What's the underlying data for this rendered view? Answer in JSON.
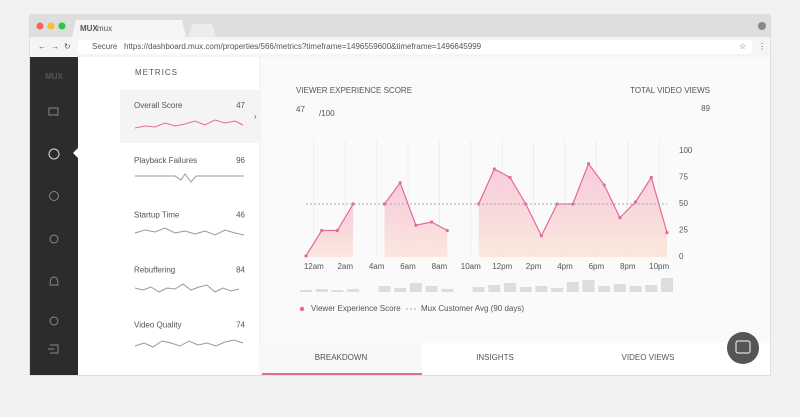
{
  "browser": {
    "tab": "mux",
    "secure": "Secure",
    "url": "https://dashboard.mux.com/properties/566/metrics?timeframe=1496559600&timeframe=1496645999"
  },
  "sidebar": {
    "logo": "MUX"
  },
  "metrics": {
    "title": "METRICS",
    "items": [
      {
        "name": "Overall Score",
        "value": 47
      },
      {
        "name": "Playback Failures",
        "value": 96
      },
      {
        "name": "Startup Time",
        "value": 46
      },
      {
        "name": "Rebuffering",
        "value": 84
      },
      {
        "name": "Video Quality",
        "value": 74
      }
    ]
  },
  "score": {
    "label": "VIEWER EXPERIENCE SCORE",
    "value": 47,
    "suffix": "/100"
  },
  "views": {
    "label": "TOTAL VIDEO VIEWS",
    "value": 89
  },
  "chart_data": {
    "type": "line",
    "x": [
      -0.5,
      0.5,
      1.5,
      2.5,
      3.5,
      4.5,
      5.5,
      6.5,
      7.5,
      8.5,
      9.5,
      10.5,
      11.5,
      12.5,
      13.5,
      14.5,
      15.5,
      16.5,
      17.5,
      18.5,
      19.5,
      20.5,
      21.5,
      22.5
    ],
    "series": [
      {
        "name": "Viewer Experience Score",
        "color": "#e46a9b",
        "values": [
          1,
          25,
          25,
          50,
          null,
          50,
          70,
          30,
          33,
          25,
          null,
          50,
          83,
          75,
          50,
          20,
          50,
          50,
          88,
          68,
          37,
          52,
          75,
          23
        ]
      },
      {
        "name": "Mux Customer Avg (90 days)",
        "color": "#aaaaaa",
        "values": [
          50,
          50,
          50,
          50,
          50,
          50,
          50,
          50,
          50,
          50,
          50,
          50,
          50,
          50,
          50,
          50,
          50,
          50,
          50,
          50,
          50,
          50,
          50,
          50
        ]
      }
    ],
    "xlim": [
      -0.5,
      22.5
    ],
    "xticks": [
      {
        "value": 0,
        "label": "12am"
      },
      {
        "value": 2,
        "label": "2am"
      },
      {
        "value": 4,
        "label": "4am"
      },
      {
        "value": 6,
        "label": "6am"
      },
      {
        "value": 8,
        "label": "8am"
      },
      {
        "value": 10,
        "label": "10am"
      },
      {
        "value": 12,
        "label": "12pm"
      },
      {
        "value": 14,
        "label": "2pm"
      },
      {
        "value": 16,
        "label": "4pm"
      },
      {
        "value": 18,
        "label": "6pm"
      },
      {
        "value": 20,
        "label": "8pm"
      },
      {
        "value": 22,
        "label": "10pm"
      }
    ],
    "ylim": [
      0,
      100
    ],
    "yticks": [
      0,
      25,
      50,
      75,
      100
    ],
    "grid": true
  },
  "tabs": [
    "BREAKDOWN",
    "INSIGHTS",
    "VIDEO VIEWS"
  ]
}
